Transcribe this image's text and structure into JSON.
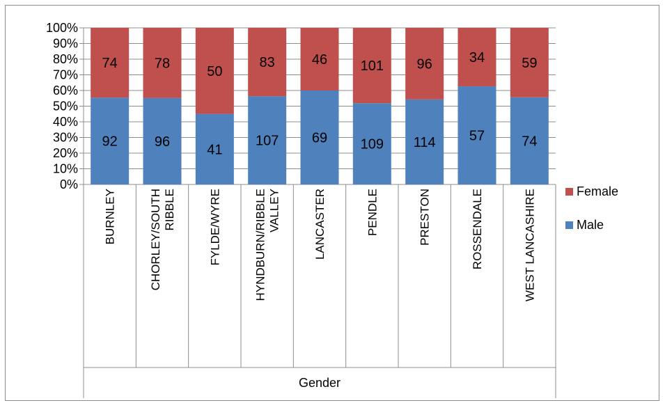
{
  "chart_data": {
    "type": "bar",
    "stacking": "percent",
    "categories": [
      "BURNLEY",
      "CHORLEY/SOUTH RIBBLE",
      "FYLDE/WYRE",
      "HYNDBURN/RIBBLE VALLEY",
      "LANCASTER",
      "PENDLE",
      "PRESTON",
      "ROSSENDALE",
      "WEST LANCASHIRE"
    ],
    "category_lines": [
      [
        "BURNLEY"
      ],
      [
        "CHORLEY/SOUTH",
        "RIBBLE"
      ],
      [
        "FYLDE/WYRE"
      ],
      [
        "HYNDBURN/RIBBLE",
        "VALLEY"
      ],
      [
        "LANCASTER"
      ],
      [
        "PENDLE"
      ],
      [
        "PRESTON"
      ],
      [
        "ROSSENDALE"
      ],
      [
        "WEST LANCASHIRE"
      ]
    ],
    "group_label": "Gender",
    "series": [
      {
        "name": "Male",
        "color": "#4f81bd",
        "values": [
          92,
          96,
          41,
          107,
          69,
          109,
          114,
          57,
          74
        ]
      },
      {
        "name": "Female",
        "color": "#c0504d",
        "values": [
          74,
          78,
          50,
          83,
          46,
          101,
          96,
          34,
          59
        ]
      }
    ],
    "y_ticks": [
      "0%",
      "10%",
      "20%",
      "30%",
      "40%",
      "50%",
      "60%",
      "70%",
      "80%",
      "90%",
      "100%"
    ],
    "ylim": [
      0,
      100
    ],
    "grid": true,
    "legend": {
      "position": "right",
      "order": [
        "Female",
        "Male"
      ]
    }
  }
}
